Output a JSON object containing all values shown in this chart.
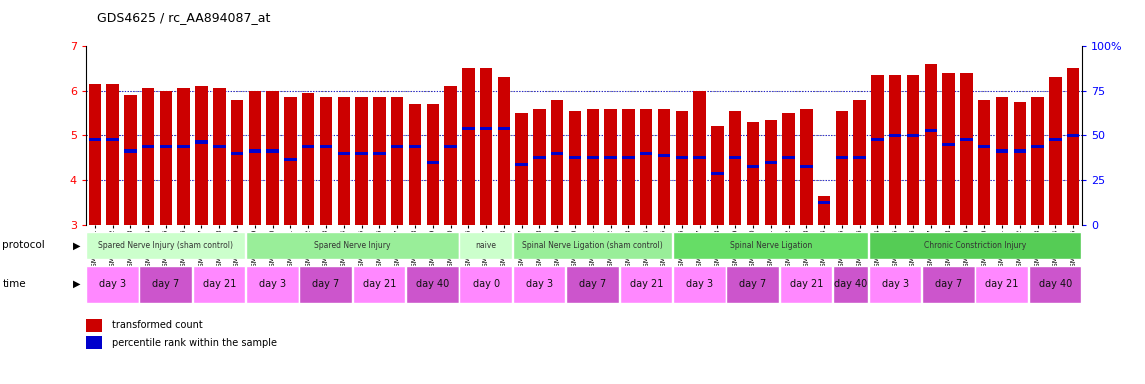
{
  "title": "GDS4625 / rc_AA894087_at",
  "ylim": [
    3,
    7
  ],
  "yticks_left": [
    3,
    4,
    5,
    6,
    7
  ],
  "pct_ticks": [
    0,
    25,
    50,
    75,
    100
  ],
  "bar_color": "#cc0000",
  "dot_color": "#0000cc",
  "samples": [
    "GSM761261",
    "GSM761262",
    "GSM761263",
    "GSM761264",
    "GSM761265",
    "GSM761266",
    "GSM761267",
    "GSM761268",
    "GSM761269",
    "GSM761249",
    "GSM761250",
    "GSM761251",
    "GSM761252",
    "GSM761253",
    "GSM761254",
    "GSM761255",
    "GSM761256",
    "GSM761257",
    "GSM761258",
    "GSM761259",
    "GSM761260",
    "GSM761246",
    "GSM761247",
    "GSM761248",
    "GSM761237",
    "GSM761238",
    "GSM761239",
    "GSM761240",
    "GSM761241",
    "GSM761242",
    "GSM761243",
    "GSM761244",
    "GSM761245",
    "GSM761226",
    "GSM761227",
    "GSM761228",
    "GSM761229",
    "GSM761230",
    "GSM761231",
    "GSM761232",
    "GSM761233",
    "GSM761234",
    "GSM761235",
    "GSM761236",
    "GSM761214",
    "GSM761215",
    "GSM761216",
    "GSM761217",
    "GSM761218",
    "GSM761219",
    "GSM761220",
    "GSM761221",
    "GSM761222",
    "GSM761223",
    "GSM761224",
    "GSM761225"
  ],
  "bar_heights": [
    6.15,
    6.15,
    5.9,
    6.05,
    6.0,
    6.05,
    6.1,
    6.05,
    5.8,
    6.0,
    6.0,
    5.85,
    5.95,
    5.85,
    5.85,
    5.85,
    5.85,
    5.85,
    5.7,
    5.7,
    6.1,
    6.5,
    6.5,
    6.3,
    5.5,
    5.6,
    5.8,
    5.55,
    5.6,
    5.6,
    5.6,
    5.6,
    5.6,
    5.55,
    6.0,
    5.2,
    5.55,
    5.3,
    5.35,
    5.5,
    5.6,
    3.65,
    5.55,
    5.8,
    6.35,
    6.35,
    6.35,
    6.6,
    6.4,
    6.4,
    5.8,
    5.85,
    5.75,
    5.85,
    6.3,
    6.5
  ],
  "dot_positions": [
    4.9,
    4.9,
    4.65,
    4.75,
    4.75,
    4.75,
    4.85,
    4.75,
    4.6,
    4.65,
    4.65,
    4.45,
    4.75,
    4.75,
    4.6,
    4.6,
    4.6,
    4.75,
    4.75,
    4.4,
    4.75,
    5.15,
    5.15,
    5.15,
    4.35,
    4.5,
    4.6,
    4.5,
    4.5,
    4.5,
    4.5,
    4.6,
    4.55,
    4.5,
    4.5,
    4.15,
    4.5,
    4.3,
    4.4,
    4.5,
    4.3,
    3.5,
    4.5,
    4.5,
    4.9,
    5.0,
    5.0,
    5.1,
    4.8,
    4.9,
    4.75,
    4.65,
    4.65,
    4.75,
    4.9,
    5.0
  ],
  "protocols": [
    {
      "label": "Spared Nerve Injury (sham control)",
      "start": 0,
      "end": 9,
      "color": "#ccffcc"
    },
    {
      "label": "Spared Nerve Injury",
      "start": 9,
      "end": 21,
      "color": "#99ee99"
    },
    {
      "label": "naive",
      "start": 21,
      "end": 24,
      "color": "#ccffcc"
    },
    {
      "label": "Spinal Nerve Ligation (sham control)",
      "start": 24,
      "end": 33,
      "color": "#99ee99"
    },
    {
      "label": "Spinal Nerve Ligation",
      "start": 33,
      "end": 44,
      "color": "#66dd66"
    },
    {
      "label": "Chronic Constriction Injury",
      "start": 44,
      "end": 56,
      "color": "#55cc55"
    }
  ],
  "time_groups": [
    {
      "label": "day 3",
      "start": 0,
      "end": 3,
      "color": "#ff88ff"
    },
    {
      "label": "day 7",
      "start": 3,
      "end": 6,
      "color": "#cc55cc"
    },
    {
      "label": "day 21",
      "start": 6,
      "end": 9,
      "color": "#ff88ff"
    },
    {
      "label": "day 3",
      "start": 9,
      "end": 12,
      "color": "#ff88ff"
    },
    {
      "label": "day 7",
      "start": 12,
      "end": 15,
      "color": "#cc55cc"
    },
    {
      "label": "day 21",
      "start": 15,
      "end": 18,
      "color": "#ff88ff"
    },
    {
      "label": "day 40",
      "start": 18,
      "end": 21,
      "color": "#cc55cc"
    },
    {
      "label": "day 0",
      "start": 21,
      "end": 24,
      "color": "#ff88ff"
    },
    {
      "label": "day 3",
      "start": 24,
      "end": 27,
      "color": "#ff88ff"
    },
    {
      "label": "day 7",
      "start": 27,
      "end": 30,
      "color": "#cc55cc"
    },
    {
      "label": "day 21",
      "start": 30,
      "end": 33,
      "color": "#ff88ff"
    },
    {
      "label": "day 3",
      "start": 33,
      "end": 36,
      "color": "#ff88ff"
    },
    {
      "label": "day 7",
      "start": 36,
      "end": 39,
      "color": "#cc55cc"
    },
    {
      "label": "day 21",
      "start": 39,
      "end": 42,
      "color": "#ff88ff"
    },
    {
      "label": "day 40",
      "start": 42,
      "end": 44,
      "color": "#cc55cc"
    },
    {
      "label": "day 3",
      "start": 44,
      "end": 47,
      "color": "#ff88ff"
    },
    {
      "label": "day 7",
      "start": 47,
      "end": 50,
      "color": "#cc55cc"
    },
    {
      "label": "day 21",
      "start": 50,
      "end": 53,
      "color": "#ff88ff"
    },
    {
      "label": "day 40",
      "start": 53,
      "end": 56,
      "color": "#cc55cc"
    }
  ],
  "legend_items": [
    {
      "label": "transformed count",
      "color": "#cc0000"
    },
    {
      "label": "percentile rank within the sample",
      "color": "#0000cc"
    }
  ],
  "bg_color": "#ffffff"
}
